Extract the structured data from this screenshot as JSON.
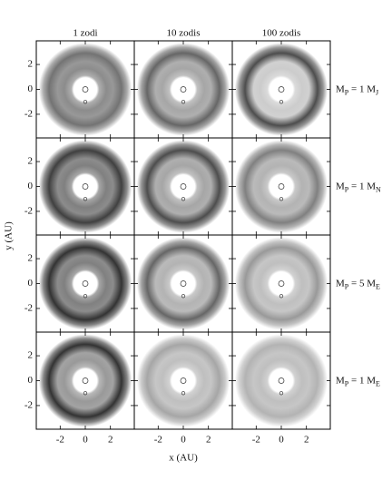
{
  "chart_data": {
    "type": "image-grid",
    "column_titles": [
      "1 zodi",
      "10 zodis",
      "100 zodis"
    ],
    "row_labels": [
      [
        "M",
        "P",
        " = 1 M",
        "J"
      ],
      [
        "M",
        "P",
        " = 1 M",
        "N"
      ],
      [
        "M",
        "P",
        " = 5 M",
        "E"
      ],
      [
        "M",
        "P",
        " = 1 M",
        "E"
      ]
    ],
    "x_label": "x (AU)",
    "y_label": "y (AU)",
    "xlim": [
      -3.9,
      3.9
    ],
    "ylim": [
      -3.9,
      3.9
    ],
    "xticks": [
      -2,
      0,
      2
    ],
    "yticks": [
      -2,
      0,
      2
    ]
  }
}
